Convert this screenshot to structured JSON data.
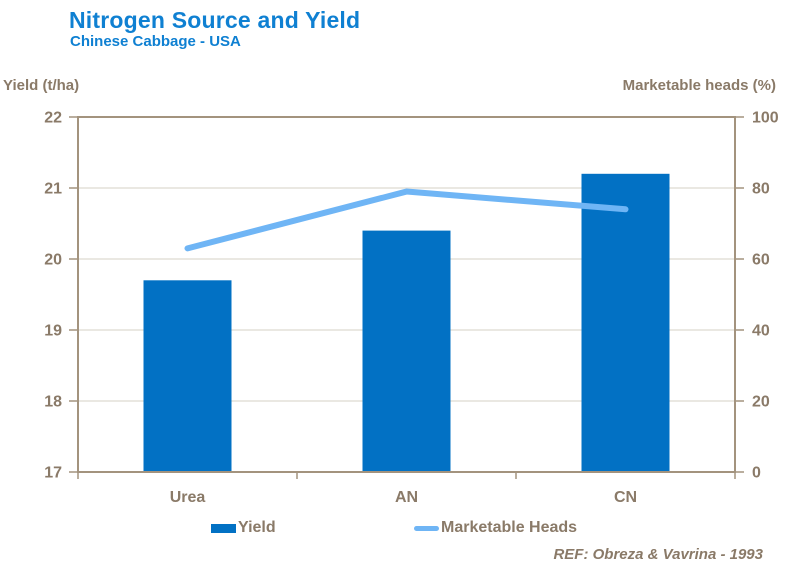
{
  "header": {
    "title": "Nitrogen Source and Yield",
    "subtitle": "Chinese Cabbage - USA"
  },
  "footer": {
    "reference": "REF: Obreza & Vavrina - 1993"
  },
  "colors": {
    "title_blue": "#0f80d2",
    "bar_blue": "#0271c4",
    "line_blue": "#6fb5f5",
    "text_brown": "#8a7a68",
    "axis_brown": "#a3937e",
    "grid": "#e4e0d8"
  },
  "legend": {
    "yield_label": "Yield",
    "marketable_label": "Marketable Heads"
  },
  "chart_data": {
    "type": "bar",
    "categories": [
      "Urea",
      "AN",
      "CN"
    ],
    "series": [
      {
        "name": "Yield",
        "type": "bar",
        "axis": "left",
        "values": [
          19.7,
          20.4,
          21.2
        ],
        "color": "#0271c4"
      },
      {
        "name": "Marketable Heads",
        "type": "line",
        "axis": "right",
        "values": [
          63,
          79,
          74
        ],
        "color": "#6fb5f5"
      }
    ],
    "title": "Nitrogen Source and Yield",
    "subtitle": "Chinese Cabbage - USA",
    "left_axis": {
      "label": "Yield (t/ha)",
      "min": 17,
      "max": 22,
      "ticks": [
        17,
        18,
        19,
        20,
        21,
        22
      ]
    },
    "right_axis": {
      "label": "Marketable heads (%)",
      "min": 0,
      "max": 100,
      "ticks": [
        0,
        20,
        40,
        60,
        80,
        100
      ]
    },
    "grid": true,
    "legend_position": "bottom"
  }
}
